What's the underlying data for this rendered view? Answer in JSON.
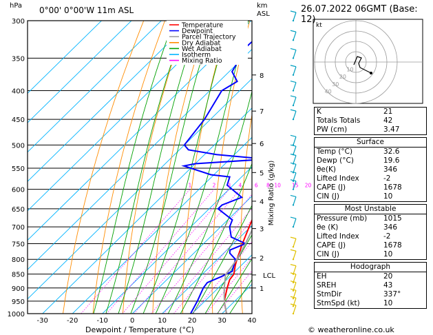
{
  "header": {
    "location": "0°00' 0°00'W 11m ASL",
    "date": "26.07.2022 06GMT (Base: 12)",
    "hpa_label": "hPa",
    "km_label": "km",
    "asl_label": "ASL"
  },
  "chart_data": {
    "type": "line",
    "title": "",
    "xlabel": "Dewpoint / Temperature (°C)",
    "ylabel": "hPa",
    "right_label": "Mixing Ratio (g/kg)",
    "xlim": [
      -35,
      40
    ],
    "ylim": [
      1000,
      300
    ],
    "pressure_ticks": [
      300,
      350,
      400,
      450,
      500,
      550,
      600,
      650,
      700,
      750,
      800,
      850,
      900,
      950,
      1000
    ],
    "temp_ticks": [
      -30,
      -20,
      -10,
      0,
      10,
      20,
      30,
      40
    ],
    "km_ticks": [
      {
        "label": "1",
        "p": 900
      },
      {
        "label": "2",
        "p": 795
      },
      {
        "label": "3",
        "p": 705
      },
      {
        "label": "4",
        "p": 630
      },
      {
        "label": "5",
        "p": 560
      },
      {
        "label": "6",
        "p": 497
      },
      {
        "label": "7",
        "p": 435
      },
      {
        "label": "8",
        "p": 375
      }
    ],
    "lcl_label": "LCL",
    "lcl_p": 853,
    "mixing_ratio_labels": [
      "1",
      "2",
      "3",
      "4",
      "6",
      "8",
      "10",
      "15",
      "20",
      "25"
    ],
    "legend": [
      {
        "name": "Temperature",
        "color": "#ff0000"
      },
      {
        "name": "Dewpoint",
        "color": "#0000ff"
      },
      {
        "name": "Parcel Trajectory",
        "color": "#a0a0a0"
      },
      {
        "name": "Dry Adiabat",
        "color": "#ff8c00"
      },
      {
        "name": "Wet Adiabat",
        "color": "#00a000"
      },
      {
        "name": "Isotherm",
        "color": "#00b4ff"
      },
      {
        "name": "Mixing Ratio",
        "color": "#ff00ff"
      }
    ],
    "series": [
      {
        "name": "Temperature",
        "color": "#ff0000",
        "points": [
          [
            1000,
            31.5
          ],
          [
            970,
            28.5
          ],
          [
            950,
            26.5
          ],
          [
            900,
            23
          ],
          [
            870,
            21
          ],
          [
            850,
            20.5
          ],
          [
            820,
            18
          ],
          [
            800,
            16.5
          ],
          [
            750,
            13
          ],
          [
            700,
            9.5
          ],
          [
            650,
            6
          ],
          [
            600,
            2.5
          ],
          [
            550,
            -1
          ],
          [
            520,
            -3
          ],
          [
            500,
            -4.5
          ],
          [
            470,
            -7.5
          ],
          [
            450,
            -11
          ],
          [
            400,
            -17
          ],
          [
            370,
            -21.5
          ],
          [
            350,
            -25.5
          ],
          [
            300,
            -33
          ]
        ]
      },
      {
        "name": "Dewpoint",
        "color": "#0000ff",
        "points": [
          [
            1000,
            19.5
          ],
          [
            950,
            17.5
          ],
          [
            900,
            15
          ],
          [
            880,
            14.5
          ],
          [
            860,
            17
          ],
          [
            840,
            19
          ],
          [
            800,
            16
          ],
          [
            780,
            12
          ],
          [
            770,
            11
          ],
          [
            750,
            14
          ],
          [
            730,
            7
          ],
          [
            700,
            3
          ],
          [
            680,
            1.5
          ],
          [
            650,
            -7
          ],
          [
            640,
            -7
          ],
          [
            620,
            -3
          ],
          [
            590,
            -12
          ],
          [
            570,
            -14
          ],
          [
            565,
            -21
          ],
          [
            545,
            -33
          ],
          [
            540,
            -30
          ],
          [
            530,
            -8
          ],
          [
            520,
            -26
          ],
          [
            510,
            -37
          ],
          [
            500,
            -40
          ],
          [
            450,
            -42
          ],
          [
            400,
            -46
          ],
          [
            385,
            -44
          ],
          [
            370,
            -49
          ],
          [
            360,
            -50
          ],
          [
            350,
            -53
          ],
          [
            300,
            -52
          ]
        ]
      },
      {
        "name": "Parcel Trajectory",
        "color": "#a0a0a0",
        "points": [
          [
            1000,
            31.5
          ],
          [
            950,
            26.5
          ],
          [
            900,
            22
          ],
          [
            853,
            18
          ],
          [
            800,
            16.5
          ],
          [
            750,
            14
          ],
          [
            700,
            11
          ],
          [
            650,
            7.5
          ],
          [
            600,
            4
          ],
          [
            550,
            0
          ],
          [
            500,
            -4.5
          ],
          [
            450,
            -9.5
          ],
          [
            400,
            -15.5
          ],
          [
            370,
            -19.5
          ]
        ]
      }
    ]
  },
  "hodograph": {
    "label": "kt",
    "ring_labels": [
      "10",
      "20",
      "30",
      "40"
    ]
  },
  "indices": {
    "top": [
      {
        "label": "K",
        "value": "21"
      },
      {
        "label": "Totals Totals",
        "value": "42"
      },
      {
        "label": "PW (cm)",
        "value": "3.47"
      }
    ],
    "surface": {
      "title": "Surface",
      "rows": [
        {
          "label": "Temp (°C)",
          "value": "32.6"
        },
        {
          "label": "Dewp (°C)",
          "value": "19.6"
        },
        {
          "label": "θe(K)",
          "value": "346"
        },
        {
          "label": "Lifted Index",
          "value": "-2"
        },
        {
          "label": "CAPE (J)",
          "value": "1678"
        },
        {
          "label": "CIN (J)",
          "value": "10"
        }
      ]
    },
    "unstable": {
      "title": "Most Unstable",
      "rows": [
        {
          "label": "Pressure (mb)",
          "value": "1015"
        },
        {
          "label": "θe (K)",
          "value": "346"
        },
        {
          "label": "Lifted Index",
          "value": "-2"
        },
        {
          "label": "CAPE (J)",
          "value": "1678"
        },
        {
          "label": "CIN (J)",
          "value": "10"
        }
      ]
    },
    "hodo": {
      "title": "Hodograph",
      "rows": [
        {
          "label": "EH",
          "value": "20"
        },
        {
          "label": "SREH",
          "value": "43"
        },
        {
          "label": "StmDir",
          "value": "337°"
        },
        {
          "label": "StmSpd (kt)",
          "value": "10"
        }
      ]
    }
  },
  "credit": "© weatheronline.co.uk"
}
